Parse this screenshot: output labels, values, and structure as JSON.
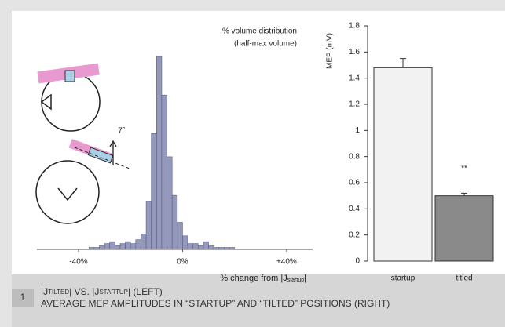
{
  "chart_data": [
    {
      "type": "histogram",
      "title_lines": [
        "% volume distribution",
        "(half-max volume)"
      ],
      "x_label_parts": [
        "% change from |J",
        "startup",
        "|"
      ],
      "annotation": "7°",
      "bins": [
        -36,
        -34,
        -32,
        -30,
        -28,
        -26,
        -24,
        -22,
        -20,
        -18,
        -16,
        -14,
        -12,
        -10,
        -8,
        -6,
        -4,
        -2,
        0,
        2,
        4,
        6,
        8,
        10,
        12,
        14,
        16,
        18,
        20
      ],
      "values": [
        1,
        1,
        2,
        3,
        4,
        2,
        3,
        4,
        3,
        5,
        8,
        25,
        60,
        100,
        80,
        48,
        28,
        14,
        7,
        3,
        3,
        2,
        4,
        2,
        1,
        1,
        1,
        1
      ],
      "color": "#9498bb",
      "xlim": [
        -56,
        50
      ],
      "ylim": [
        0,
        100
      ],
      "xticks": [
        {
          "value": -40,
          "label": "-40%"
        },
        {
          "value": 0,
          "label": "0%"
        },
        {
          "value": 40,
          "label": "+40%"
        }
      ]
    },
    {
      "type": "bar",
      "y_label": "MEP (mV)",
      "categories": [
        "startup",
        "titled"
      ],
      "values": [
        1.48,
        0.5
      ],
      "errors": [
        0.07,
        0.02
      ],
      "colors": [
        "#f2f2f2",
        "#8a8a8a"
      ],
      "annotation": "**",
      "ylim": [
        0,
        1.8
      ],
      "yticks": [
        0,
        0.2,
        0.4,
        0.6,
        0.8,
        1,
        1.2,
        1.4,
        1.6,
        1.8
      ]
    }
  ],
  "caption": {
    "number": "1",
    "line1_parts": [
      "|J",
      "TILTED",
      "| VS. |J",
      "STARTUP",
      "| (LEFT)"
    ],
    "line2": "AVERAGE MEP AMPLITUDES IN “STARTUP” AND “TILTED” POSITIONS (RIGHT)"
  }
}
